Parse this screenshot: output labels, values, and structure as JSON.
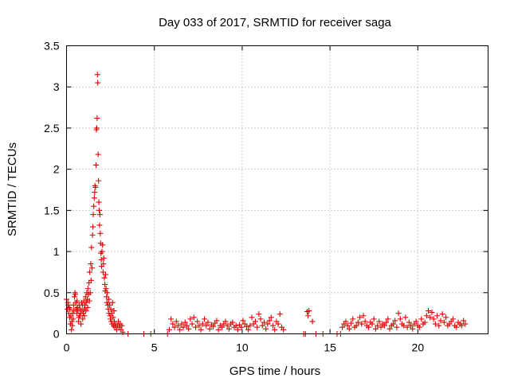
{
  "chart_data": {
    "type": "scatter",
    "title": "Day 033 of 2017, SRMTID for receiver saga",
    "xlabel": "GPS time / hours",
    "ylabel": "SRMTID / TECUs",
    "xlim": [
      0,
      24
    ],
    "ylim": [
      0,
      3.5
    ],
    "xticks": [
      0,
      5,
      10,
      15,
      20
    ],
    "xtick_labels": [
      "0",
      "5",
      "10",
      "15",
      "20"
    ],
    "yticks": [
      0,
      0.5,
      1,
      1.5,
      2,
      2.5,
      3,
      3.5
    ],
    "ytick_labels": [
      "0",
      "0.5",
      "1",
      "1.5",
      "2",
      "2.5",
      "3",
      "3.5"
    ],
    "grid": true,
    "marker": "+",
    "color": "#e00000",
    "series": [
      {
        "name": "SRMTID",
        "x": [
          0.0,
          0.05,
          0.08,
          0.1,
          0.12,
          0.15,
          0.18,
          0.2,
          0.22,
          0.25,
          0.28,
          0.3,
          0.33,
          0.35,
          0.38,
          0.4,
          0.42,
          0.45,
          0.48,
          0.5,
          0.52,
          0.55,
          0.58,
          0.6,
          0.62,
          0.65,
          0.68,
          0.7,
          0.72,
          0.75,
          0.78,
          0.8,
          0.82,
          0.85,
          0.88,
          0.9,
          0.92,
          0.95,
          0.98,
          1.0,
          1.02,
          1.05,
          1.08,
          1.1,
          1.12,
          1.15,
          1.18,
          1.2,
          1.22,
          1.25,
          1.28,
          1.3,
          1.32,
          1.35,
          1.38,
          1.4,
          1.42,
          1.45,
          1.48,
          1.5,
          1.52,
          1.55,
          1.58,
          1.6,
          1.62,
          1.65,
          1.68,
          1.7,
          1.72,
          1.74,
          1.76,
          1.78,
          1.8,
          1.82,
          1.84,
          1.86,
          1.88,
          1.9,
          1.92,
          1.94,
          1.96,
          1.98,
          2.0,
          2.02,
          2.05,
          2.08,
          2.1,
          2.12,
          2.15,
          2.18,
          2.2,
          2.22,
          2.25,
          2.28,
          2.3,
          2.32,
          2.35,
          2.38,
          2.4,
          2.42,
          2.45,
          2.48,
          2.5,
          2.52,
          2.55,
          2.58,
          2.6,
          2.62,
          2.65,
          2.68,
          2.7,
          2.72,
          2.75,
          2.8,
          2.85,
          2.9,
          2.95,
          3.0,
          3.05,
          3.1,
          3.15,
          3.2,
          3.5,
          4.4,
          4.8,
          5.75,
          5.85,
          5.95,
          6.05,
          6.15,
          6.25,
          6.35,
          6.45,
          6.55,
          6.65,
          6.75,
          6.85,
          6.95,
          7.05,
          7.15,
          7.25,
          7.35,
          7.45,
          7.55,
          7.65,
          7.75,
          7.85,
          7.95,
          8.05,
          8.15,
          8.25,
          8.35,
          8.45,
          8.55,
          8.65,
          8.75,
          8.85,
          8.95,
          9.05,
          9.15,
          9.25,
          9.35,
          9.45,
          9.55,
          9.65,
          9.75,
          9.85,
          9.95,
          10.05,
          10.15,
          10.25,
          10.35,
          10.45,
          10.55,
          10.65,
          10.75,
          10.85,
          10.95,
          11.05,
          11.15,
          11.25,
          11.35,
          11.45,
          11.55,
          11.65,
          11.75,
          11.85,
          11.95,
          12.05,
          12.15,
          12.25,
          12.35,
          13.5,
          13.6,
          13.7,
          13.75,
          13.8,
          14.0,
          14.2,
          14.6,
          15.4,
          15.6,
          15.7,
          15.8,
          15.9,
          16.0,
          16.1,
          16.2,
          16.3,
          16.4,
          16.5,
          16.6,
          16.7,
          16.8,
          16.9,
          17.0,
          17.1,
          17.2,
          17.3,
          17.4,
          17.5,
          17.6,
          17.7,
          17.8,
          17.9,
          18.0,
          18.1,
          18.2,
          18.3,
          18.4,
          18.5,
          18.6,
          18.7,
          18.8,
          18.9,
          19.0,
          19.1,
          19.2,
          19.3,
          19.4,
          19.5,
          19.6,
          19.7,
          19.8,
          19.9,
          20.0,
          20.1,
          20.2,
          20.3,
          20.4,
          20.5,
          20.6,
          20.7,
          20.8,
          20.9,
          21.0,
          21.1,
          21.2,
          21.3,
          21.4,
          21.5,
          21.6,
          21.7,
          21.8,
          21.9,
          22.0,
          22.1,
          22.2,
          22.3,
          22.4,
          22.5,
          22.6,
          22.7
        ],
        "y": [
          0.42,
          0.3,
          0.38,
          0.35,
          0.25,
          0.32,
          0.2,
          0.3,
          0.12,
          0.22,
          0.05,
          0.15,
          0.1,
          0.25,
          0.18,
          0.35,
          0.28,
          0.45,
          0.5,
          0.48,
          0.38,
          0.3,
          0.25,
          0.4,
          0.32,
          0.28,
          0.15,
          0.2,
          0.35,
          0.22,
          0.3,
          0.25,
          0.12,
          0.38,
          0.28,
          0.35,
          0.18,
          0.25,
          0.4,
          0.3,
          0.22,
          0.35,
          0.45,
          0.28,
          0.38,
          0.5,
          0.42,
          0.32,
          0.55,
          0.48,
          0.62,
          0.4,
          0.75,
          0.5,
          0.85,
          0.65,
          1.05,
          0.8,
          1.2,
          1.3,
          1.45,
          1.55,
          1.65,
          1.72,
          1.8,
          1.78,
          2.05,
          2.48,
          2.5,
          2.62,
          3.15,
          3.05,
          2.18,
          1.86,
          1.6,
          1.5,
          1.32,
          1.45,
          1.22,
          1.1,
          0.98,
          0.9,
          0.82,
          1.0,
          1.08,
          0.75,
          0.85,
          0.92,
          0.68,
          0.6,
          0.52,
          0.72,
          0.55,
          0.45,
          0.38,
          0.5,
          0.35,
          0.3,
          0.42,
          0.25,
          0.35,
          0.22,
          0.18,
          0.3,
          0.15,
          0.25,
          0.12,
          0.38,
          0.2,
          0.1,
          0.28,
          0.15,
          0.08,
          0.12,
          0.05,
          0.1,
          0.15,
          0.08,
          0.12,
          0.05,
          0.1,
          0.02,
          0.0,
          0.0,
          0.0,
          0.0,
          0.05,
          0.18,
          0.12,
          0.08,
          0.15,
          0.1,
          0.05,
          0.12,
          0.08,
          0.14,
          0.1,
          0.06,
          0.18,
          0.12,
          0.2,
          0.08,
          0.15,
          0.1,
          0.05,
          0.12,
          0.18,
          0.1,
          0.14,
          0.06,
          0.11,
          0.09,
          0.13,
          0.16,
          0.05,
          0.1,
          0.08,
          0.12,
          0.15,
          0.1,
          0.06,
          0.12,
          0.14,
          0.08,
          0.1,
          0.05,
          0.11,
          0.08,
          0.16,
          0.12,
          0.09,
          0.05,
          0.1,
          0.2,
          0.12,
          0.15,
          0.08,
          0.24,
          0.18,
          0.1,
          0.14,
          0.06,
          0.12,
          0.16,
          0.2,
          0.1,
          0.05,
          0.15,
          0.12,
          0.24,
          0.08,
          0.05,
          0.0,
          0.0,
          0.27,
          0.22,
          0.28,
          0.15,
          0.0,
          0.0,
          0.0,
          0.0,
          0.08,
          0.12,
          0.15,
          0.1,
          0.06,
          0.13,
          0.18,
          0.08,
          0.1,
          0.14,
          0.2,
          0.12,
          0.22,
          0.15,
          0.1,
          0.08,
          0.14,
          0.12,
          0.18,
          0.06,
          0.1,
          0.15,
          0.08,
          0.12,
          0.1,
          0.14,
          0.18,
          0.06,
          0.1,
          0.12,
          0.16,
          0.08,
          0.25,
          0.18,
          0.12,
          0.1,
          0.2,
          0.08,
          0.14,
          0.1,
          0.06,
          0.12,
          0.15,
          0.1,
          0.08,
          0.18,
          0.12,
          0.14,
          0.22,
          0.28,
          0.2,
          0.26,
          0.18,
          0.12,
          0.22,
          0.1,
          0.16,
          0.24,
          0.14,
          0.2,
          0.1,
          0.12,
          0.15,
          0.18,
          0.1,
          0.08,
          0.14,
          0.12,
          0.1,
          0.16,
          0.12
        ]
      }
    ]
  }
}
